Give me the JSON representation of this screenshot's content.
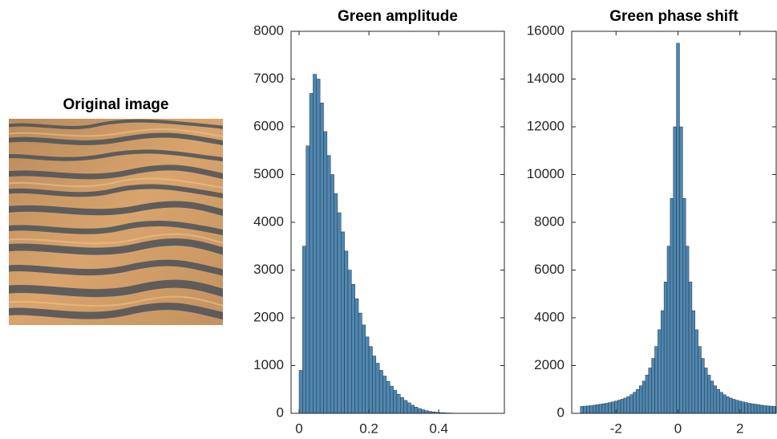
{
  "chart_data": [
    {
      "type": "image",
      "title": "Original image"
    },
    {
      "type": "histogram",
      "title": "Green amplitude",
      "bins": [
        0,
        0.01,
        0.02,
        0.03,
        0.04,
        0.05,
        0.06,
        0.07,
        0.08,
        0.09,
        0.1,
        0.11,
        0.12,
        0.13,
        0.14,
        0.15,
        0.16,
        0.17,
        0.18,
        0.19,
        0.2,
        0.21,
        0.22,
        0.23,
        0.24,
        0.25,
        0.26,
        0.27,
        0.28,
        0.29,
        0.3,
        0.31,
        0.32,
        0.33,
        0.34,
        0.35,
        0.36,
        0.37,
        0.38,
        0.39,
        0.4,
        0.41,
        0.42,
        0.43,
        0.44,
        0.45,
        0.46,
        0.47,
        0.48,
        0.49,
        0.5,
        0.51,
        0.52,
        0.53,
        0.54,
        0.55,
        0.56
      ],
      "values": [
        900,
        3500,
        5600,
        6700,
        7100,
        7000,
        6500,
        5900,
        5400,
        5000,
        4600,
        4200,
        3800,
        3400,
        3000,
        2700,
        2400,
        2100,
        1850,
        1600,
        1400,
        1200,
        1050,
        900,
        780,
        670,
        570,
        480,
        400,
        330,
        270,
        220,
        170,
        130,
        100,
        75,
        55,
        40,
        30,
        22,
        16,
        12,
        9,
        7,
        5,
        4,
        3,
        2,
        2,
        1,
        1,
        1,
        1,
        1,
        0,
        0
      ],
      "color": "#4f87b0",
      "edgecolor": "#1f3344",
      "xlim": [
        -0.023,
        0.588
      ],
      "ylim": [
        0,
        8000
      ],
      "xticks": [
        0,
        0.2,
        0.4
      ],
      "yticks": [
        0,
        1000,
        2000,
        3000,
        4000,
        5000,
        6000,
        7000,
        8000
      ]
    },
    {
      "type": "histogram",
      "title": "Green phase shift",
      "bins": [
        -3.15,
        -3.05,
        -2.95,
        -2.85,
        -2.75,
        -2.65,
        -2.55,
        -2.45,
        -2.35,
        -2.25,
        -2.15,
        -2.05,
        -1.95,
        -1.85,
        -1.75,
        -1.65,
        -1.55,
        -1.45,
        -1.35,
        -1.25,
        -1.15,
        -1.05,
        -0.95,
        -0.85,
        -0.75,
        -0.65,
        -0.55,
        -0.45,
        -0.35,
        -0.25,
        -0.15,
        -0.05,
        0.05,
        0.15,
        0.25,
        0.35,
        0.45,
        0.55,
        0.65,
        0.75,
        0.85,
        0.95,
        1.05,
        1.15,
        1.25,
        1.35,
        1.45,
        1.55,
        1.65,
        1.75,
        1.85,
        1.95,
        2.05,
        2.15,
        2.25,
        2.35,
        2.45,
        2.55,
        2.65,
        2.75,
        2.85,
        2.95,
        3.05,
        3.15
      ],
      "values": [
        290,
        300,
        310,
        320,
        340,
        360,
        380,
        400,
        420,
        450,
        480,
        510,
        550,
        590,
        640,
        700,
        780,
        880,
        1000,
        1150,
        1350,
        1600,
        1900,
        2300,
        2800,
        3500,
        4300,
        5500,
        7000,
        9000,
        12000,
        15500,
        12000,
        9000,
        7000,
        5500,
        4300,
        3500,
        2800,
        2300,
        1900,
        1600,
        1350,
        1150,
        1000,
        880,
        780,
        700,
        640,
        590,
        550,
        510,
        480,
        450,
        420,
        400,
        380,
        360,
        340,
        320,
        310,
        300,
        290
      ],
      "color": "#4f87b0",
      "edgecolor": "#1f3344",
      "xlim": [
        -3.43,
        3.17
      ],
      "ylim": [
        0,
        16000
      ],
      "xticks": [
        -2,
        0,
        2
      ],
      "yticks": [
        0,
        2000,
        4000,
        6000,
        8000,
        10000,
        12000,
        14000,
        16000
      ]
    }
  ]
}
